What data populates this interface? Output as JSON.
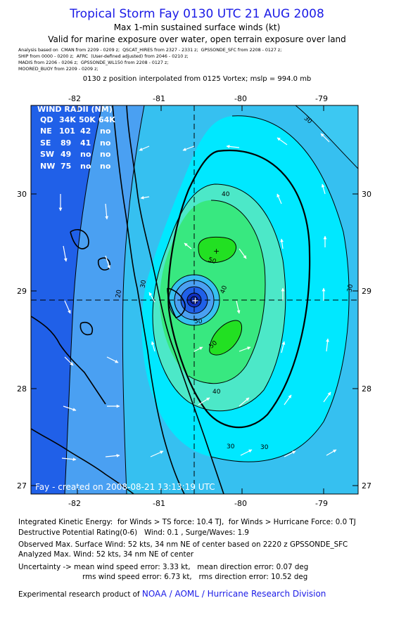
{
  "header": {
    "title": "Tropical Storm Fay 0130 UTC 21 AUG 2008",
    "subtitle": "Max 1-min sustained surface winds (kt)",
    "validity": "Valid for marine exposure over water, open terrain exposure over land",
    "analysis_lines": [
      "Analysis based on  CMAN from 2209 - 0209 z;  QSCAT_HIRES from 2327 - 2331 z;  GPSSONDE_SFC from 2208 - 0127 z;",
      "SHIP from 0000 - 0200 z;  AFRC  (User-defined adjusted) from 2046 - 0210 z;",
      "MADIS from 2206 - 0206 z;  GPSSONDE_WL150 from 2208 - 0127 z;",
      "MOORED_BUOY from 2209 - 0209 z;"
    ],
    "vortex_note": "0130 z position interpolated from 0125 Vortex; mslp = 994.0 mb"
  },
  "map": {
    "lon_ticks": [
      "-82",
      "-81",
      "-80",
      "-79"
    ],
    "lat_ticks": [
      "30",
      "29",
      "28",
      "27"
    ],
    "contour_labels": [
      "20",
      "30",
      "30",
      "30",
      "30",
      "30",
      "40",
      "40",
      "40",
      "50",
      "50",
      "50"
    ],
    "credit": "Fay - created on 2008-08-21 13:13:19 UTC",
    "colors": {
      "deep_blue": "#2060e8",
      "mid_blue": "#4aa0f2",
      "light_blue": "#36c0f0",
      "cyan": "#00e8ff",
      "aqua": "#4ce8c8",
      "green": "#38e880",
      "bright_green": "#22e022"
    }
  },
  "wind_radii": {
    "header": "WIND RADII (NM)",
    "columns": [
      "QD",
      "34K",
      "50K",
      "64K"
    ],
    "rows": [
      [
        "NE",
        "101",
        "42",
        "no"
      ],
      [
        "SE",
        "89",
        "41",
        "no"
      ],
      [
        "SW",
        "49",
        "no",
        "no"
      ],
      [
        "NW",
        "75",
        "no",
        "no"
      ]
    ]
  },
  "footer": {
    "ike": "Integrated Kinetic Energy:  for Winds > TS force: 10.4 TJ,  for Winds > Hurricane Force: 0.0 TJ",
    "dpr": "Destructive Potential Rating(0-6)   Wind: 0.1 , Surge/Waves: 1.9",
    "observed": "Observed Max. Surface Wind: 52 kts, 34 nm NE of center based on 2220 z GPSSONDE_SFC",
    "analyzed": "Analyzed Max. Wind: 52 kts, 34 nm NE of center",
    "uncertainty1": "Uncertainty -> mean wind speed error: 3.33 kt,   mean direction error: 0.07 deg",
    "uncertainty2": "rms wind speed error: 6.73 kt,   rms direction error: 10.52 deg",
    "product_prefix": "Experimental research product of ",
    "product_org": "NOAA / AOML / Hurricane Research Division"
  }
}
